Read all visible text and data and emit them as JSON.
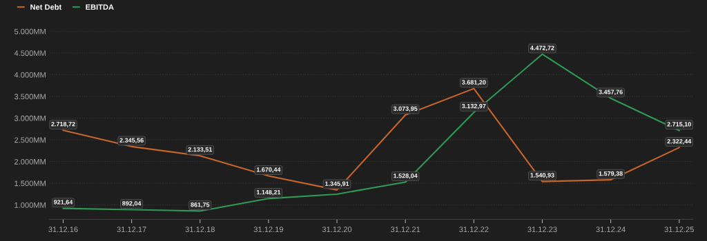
{
  "chart_data": {
    "type": "line",
    "categories": [
      "31.12.16",
      "31.12.17",
      "31.12.18",
      "31.12.19",
      "31.12.20",
      "31.12.21",
      "31.12.22",
      "31.12.23",
      "31.12.24",
      "31.12.25"
    ],
    "series": [
      {
        "name": "Net Debt",
        "color": "#c8652a",
        "values": [
          2718.72,
          2345.56,
          2133.51,
          1670.44,
          1345.91,
          3073.95,
          3681.2,
          1540.93,
          1579.38,
          2322.44
        ],
        "value_labels": [
          "2.718,72",
          "2.345,56",
          "2.133,51",
          "1.670,44",
          "1.345,91",
          "3.073,95",
          "3.681,20",
          "1.540,93",
          "1.579,38",
          "2.322,44"
        ]
      },
      {
        "name": "EBITDA",
        "color": "#2e9a55",
        "values": [
          921.64,
          892.04,
          861.75,
          1148.21,
          1250,
          1528.04,
          3132.97,
          4472.72,
          3457.76,
          2715.1
        ],
        "value_labels": [
          "921,64",
          "892,04",
          "861,75",
          "1.148,21",
          null,
          "1.528,04",
          "3.132,97",
          "4.472,72",
          "3.457,76",
          "2.715,10"
        ]
      }
    ],
    "ylim": [
      670,
      5000
    ],
    "yticks": [
      {
        "value": 1000,
        "label": "1.000MM"
      },
      {
        "value": 1500,
        "label": "1.500MM"
      },
      {
        "value": 2000,
        "label": "2.000MM"
      },
      {
        "value": 2500,
        "label": "2.500MM"
      },
      {
        "value": 3000,
        "label": "3.000MM"
      },
      {
        "value": 3500,
        "label": "3.500MM"
      },
      {
        "value": 4000,
        "label": "4.000MM"
      },
      {
        "value": 4500,
        "label": "4.500MM"
      },
      {
        "value": 5000,
        "label": "5.000MM"
      }
    ],
    "grid": "y",
    "legend": "top left",
    "line_style": "solid"
  }
}
